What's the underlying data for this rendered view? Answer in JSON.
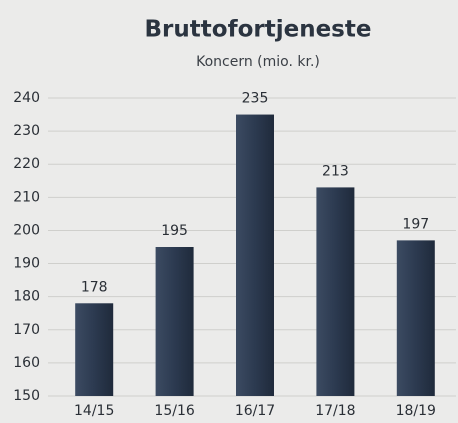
{
  "chart_data": {
    "type": "bar",
    "title": "Bruttofortjeneste",
    "subtitle": "Koncern (mio. kr.)",
    "categories": [
      "14/15",
      "15/16",
      "16/17",
      "17/18",
      "18/19"
    ],
    "values": [
      178,
      195,
      235,
      213,
      197
    ],
    "color": "#2c3a50",
    "ylim": [
      150,
      240
    ],
    "yticks": [
      150,
      160,
      170,
      180,
      190,
      200,
      210,
      220,
      230,
      240
    ],
    "grid": true
  }
}
